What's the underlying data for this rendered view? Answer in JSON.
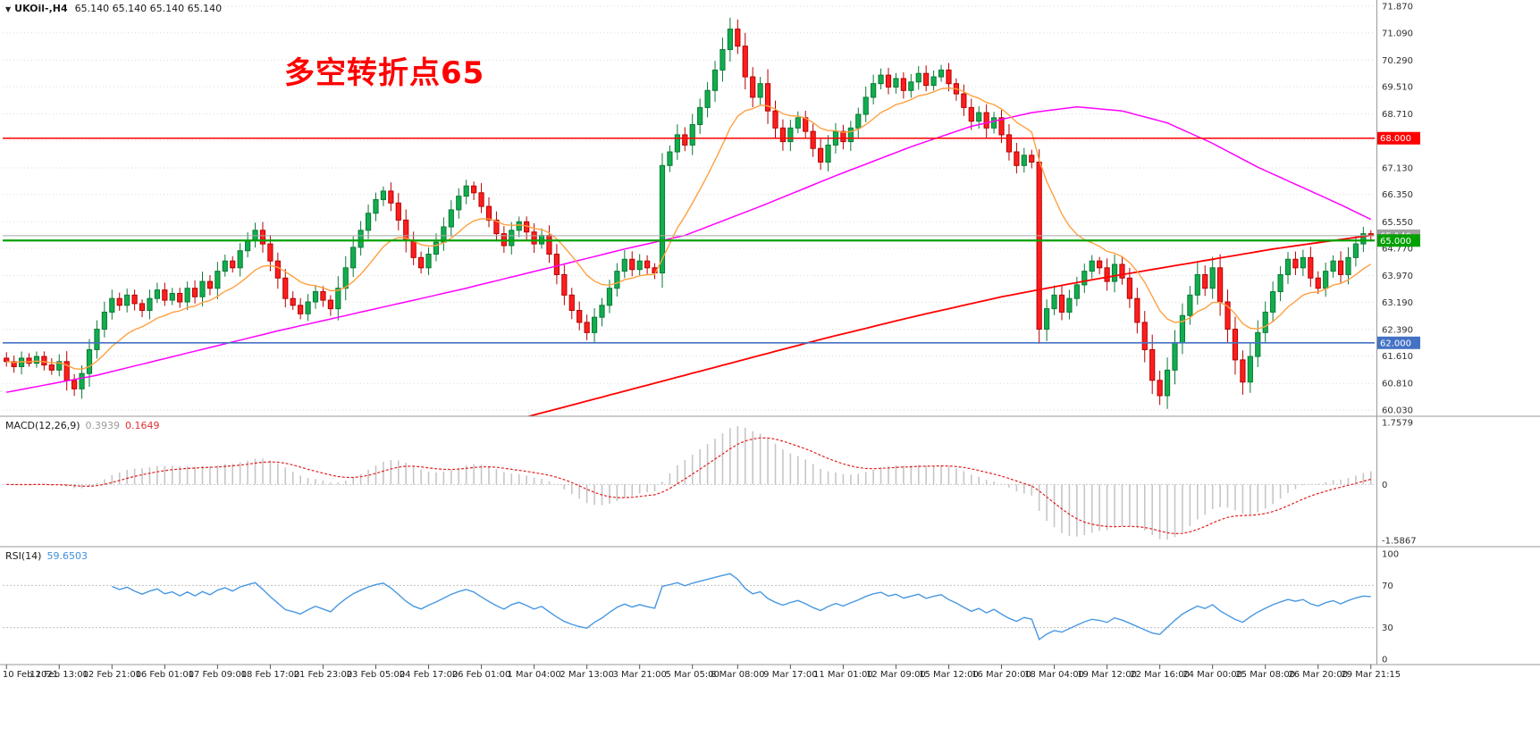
{
  "header": {
    "collapse_icon": "▼",
    "symbol": "UKOil-,H4",
    "ohlc": "65.140 65.140 65.140 65.140"
  },
  "annotation": {
    "text": "多空转折点65",
    "color": "#FF0000"
  },
  "chart_data": {
    "type": "candlestick",
    "title": "UKOil- H4 chart with MACD and RSI",
    "colors": {
      "up_fill": "#12AD4E",
      "up_stroke": "#0A7A36",
      "down_fill": "#FF1E1E",
      "down_stroke": "#B50000",
      "ma_fast": "#FFA040",
      "ma_mid": "#FF00FF",
      "ma_slow": "#FF0000",
      "macd_hist": "#C6C6C6",
      "macd_signal": "#E02020",
      "rsi_line": "#4898E2",
      "bid_line": "#A9A9A9",
      "grid": "#DADADA",
      "separator": "#9A9A9A",
      "axis_text": "#2E2E2E"
    },
    "price_axis": {
      "max": 71.87,
      "min": 60.03,
      "labels": [
        "71.870",
        "71.090",
        "70.290",
        "69.510",
        "68.710",
        "67.930",
        "67.130",
        "66.350",
        "65.550",
        "64.770",
        "63.970",
        "63.190",
        "62.390",
        "61.610",
        "60.810",
        "60.030"
      ]
    },
    "hlines": [
      {
        "value": 68.0,
        "label": "68.000",
        "color": "#FF0000",
        "width": 1.6
      },
      {
        "value": 65.0,
        "label": "65.000",
        "color": "#00A000",
        "width": 2.2
      },
      {
        "value": 62.0,
        "label": "62.000",
        "color": "#4472C4",
        "width": 1.6
      }
    ],
    "current_price": {
      "value": 65.14,
      "label": "65.140",
      "color": "#A0A0A0"
    },
    "candles": {
      "first_open": 61.55,
      "closes": [
        61.45,
        61.3,
        61.55,
        61.4,
        61.6,
        61.35,
        61.2,
        61.45,
        60.9,
        60.65,
        61.1,
        61.8,
        62.4,
        62.9,
        63.3,
        63.1,
        63.4,
        63.15,
        62.95,
        63.3,
        63.55,
        63.25,
        63.45,
        63.2,
        63.6,
        63.35,
        63.8,
        63.6,
        64.1,
        64.4,
        64.2,
        64.7,
        65.0,
        65.3,
        64.9,
        64.4,
        63.9,
        63.3,
        63.1,
        62.85,
        63.2,
        63.5,
        63.25,
        63.0,
        63.6,
        64.2,
        64.8,
        65.3,
        65.8,
        66.2,
        66.45,
        66.1,
        65.6,
        65.0,
        64.5,
        64.2,
        64.6,
        64.95,
        65.4,
        65.9,
        66.3,
        66.6,
        66.4,
        66.0,
        65.6,
        65.2,
        64.85,
        65.3,
        65.55,
        65.25,
        64.9,
        65.15,
        64.6,
        64.0,
        63.4,
        62.95,
        62.6,
        62.3,
        62.75,
        63.1,
        63.6,
        64.1,
        64.45,
        64.15,
        64.4,
        64.2,
        64.05,
        67.2,
        67.6,
        68.1,
        67.8,
        68.4,
        68.9,
        69.4,
        70.0,
        70.6,
        71.2,
        70.7,
        69.8,
        69.2,
        69.6,
        68.8,
        68.3,
        67.9,
        68.3,
        68.6,
        68.2,
        67.7,
        67.3,
        67.8,
        68.2,
        67.9,
        68.3,
        68.7,
        69.2,
        69.6,
        69.85,
        69.5,
        69.75,
        69.4,
        69.65,
        69.9,
        69.55,
        69.8,
        70.0,
        69.6,
        69.3,
        68.9,
        68.5,
        68.75,
        68.3,
        68.6,
        68.1,
        67.6,
        67.2,
        67.5,
        67.3,
        62.4,
        63.0,
        63.4,
        62.9,
        63.3,
        63.7,
        64.1,
        64.4,
        64.2,
        63.8,
        64.3,
        63.9,
        63.3,
        62.6,
        61.8,
        60.9,
        60.45,
        61.2,
        62.0,
        62.8,
        63.4,
        64.0,
        63.6,
        64.2,
        63.2,
        62.4,
        61.5,
        60.85,
        61.6,
        62.3,
        62.9,
        63.5,
        64.0,
        64.45,
        64.2,
        64.5,
        63.9,
        63.6,
        64.1,
        64.4,
        64.0,
        64.5,
        64.9,
        65.2,
        65.14
      ]
    },
    "overlays": {
      "ma_fast": {
        "type": "ema",
        "period": 13
      },
      "ma_mid": {
        "anchors": [
          [
            0,
            60.55
          ],
          [
            12,
            61.05
          ],
          [
            24,
            61.7
          ],
          [
            36,
            62.35
          ],
          [
            48,
            62.95
          ],
          [
            60,
            63.55
          ],
          [
            72,
            64.2
          ],
          [
            82,
            64.75
          ],
          [
            90,
            65.15
          ],
          [
            100,
            66.0
          ],
          [
            110,
            66.9
          ],
          [
            120,
            67.75
          ],
          [
            128,
            68.35
          ],
          [
            136,
            68.75
          ],
          [
            142,
            68.92
          ],
          [
            148,
            68.8
          ],
          [
            154,
            68.45
          ],
          [
            160,
            67.85
          ],
          [
            166,
            67.15
          ],
          [
            172,
            66.55
          ],
          [
            177,
            66.05
          ],
          [
            181,
            65.62
          ]
        ]
      },
      "ma_slow": {
        "anchors": [
          [
            58,
            59.2
          ],
          [
            72,
            60.0
          ],
          [
            84,
            60.7
          ],
          [
            96,
            61.4
          ],
          [
            108,
            62.1
          ],
          [
            120,
            62.75
          ],
          [
            132,
            63.35
          ],
          [
            144,
            63.85
          ],
          [
            156,
            64.3
          ],
          [
            168,
            64.75
          ],
          [
            176,
            65.0
          ],
          [
            181,
            65.15
          ]
        ]
      }
    },
    "macd": {
      "label": "MACD(12,26,9)",
      "main_value": "0.3939",
      "signal_value": "0.1649",
      "fast": 12,
      "slow": 26,
      "signal": 9,
      "axis": {
        "max": 1.7579,
        "min": -1.5867,
        "labels": [
          "1.7579",
          "0",
          "-1.5867"
        ]
      }
    },
    "rsi": {
      "label": "RSI(14)",
      "value": "59.6503",
      "period": 14,
      "levels": [
        70,
        30
      ],
      "axis_labels": [
        "100",
        "70",
        "30",
        "0"
      ]
    },
    "time_axis": [
      "10 Feb 2021",
      "11 Feb 13:00",
      "12 Feb 21:00",
      "16 Feb 01:00",
      "17 Feb 09:00",
      "18 Feb 17:00",
      "21 Feb 23:00",
      "23 Feb 05:00",
      "24 Feb 17:00",
      "26 Feb 01:00",
      "1 Mar 04:00",
      "2 Mar 13:00",
      "3 Mar 21:00",
      "5 Mar 05:00",
      "8 Mar 08:00",
      "9 Mar 17:00",
      "11 Mar 01:00",
      "12 Mar 09:00",
      "15 Mar 12:00",
      "16 Mar 20:00",
      "18 Mar 04:00",
      "19 Mar 12:00",
      "22 Mar 16:00",
      "24 Mar 00:00",
      "25 Mar 08:00",
      "26 Mar 20:00",
      "29 Mar 21:15"
    ]
  }
}
